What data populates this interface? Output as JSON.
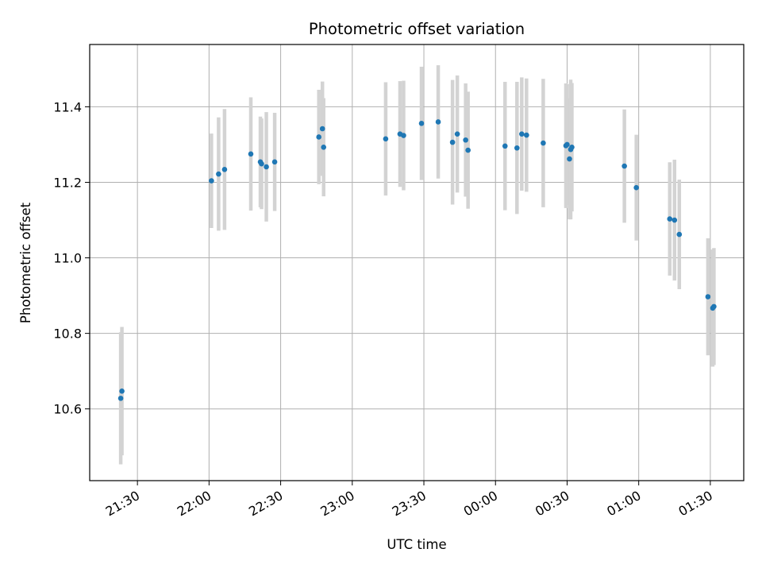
{
  "chart_data": {
    "type": "scatter",
    "title": "Photometric offset variation",
    "xlabel": "UTC time",
    "ylabel": "Photometric offset",
    "x_is_time": true,
    "xlim": [
      "21:10",
      "01:44"
    ],
    "ylim": [
      10.41,
      11.565
    ],
    "grid": true,
    "point_color": "#1f77b4",
    "errorbar_color": "#d3d3d3",
    "x_ticks": [
      "21:30",
      "22:00",
      "22:30",
      "23:00",
      "23:30",
      "00:00",
      "00:30",
      "01:00",
      "01:30"
    ],
    "y_ticks": [
      "10.6",
      "10.8",
      "11.0",
      "11.2",
      "11.4"
    ],
    "series": [
      {
        "x": [
          "21:23",
          "21:23:30",
          "22:01",
          "22:04",
          "22:06:30",
          "22:17:30",
          "22:21:30",
          "22:22",
          "22:24",
          "22:27:30",
          "22:46",
          "22:47:30",
          "22:48",
          "23:14",
          "23:20",
          "23:21:30",
          "23:29",
          "23:36",
          "23:42",
          "23:44",
          "23:47:30",
          "23:48:30",
          "00:04",
          "00:09",
          "00:11",
          "00:13",
          "00:20",
          "00:29:30",
          "00:30",
          "00:31",
          "00:31:30",
          "00:32",
          "00:54",
          "00:59",
          "01:13",
          "01:15",
          "01:17",
          "01:29",
          "01:31",
          "01:31:30"
        ],
        "y": [
          10.628,
          10.647,
          11.204,
          11.222,
          11.234,
          11.275,
          11.254,
          11.249,
          11.241,
          11.254,
          11.32,
          11.342,
          11.293,
          11.315,
          11.328,
          11.324,
          11.356,
          11.36,
          11.306,
          11.328,
          11.312,
          11.285,
          11.296,
          11.291,
          11.328,
          11.325,
          11.304,
          11.297,
          11.3,
          11.262,
          11.287,
          11.293,
          11.243,
          11.186,
          11.103,
          11.1,
          11.062,
          10.897,
          10.867,
          10.871
        ],
        "yerr": [
          0.175,
          0.17,
          0.125,
          0.15,
          0.16,
          0.15,
          0.12,
          0.12,
          0.145,
          0.13,
          0.125,
          0.125,
          0.13,
          0.15,
          0.14,
          0.145,
          0.15,
          0.15,
          0.165,
          0.155,
          0.15,
          0.155,
          0.17,
          0.175,
          0.15,
          0.15,
          0.17,
          0.165,
          0.16,
          0.16,
          0.185,
          0.17,
          0.15,
          0.14,
          0.15,
          0.16,
          0.145,
          0.155,
          0.155,
          0.155
        ]
      }
    ]
  }
}
